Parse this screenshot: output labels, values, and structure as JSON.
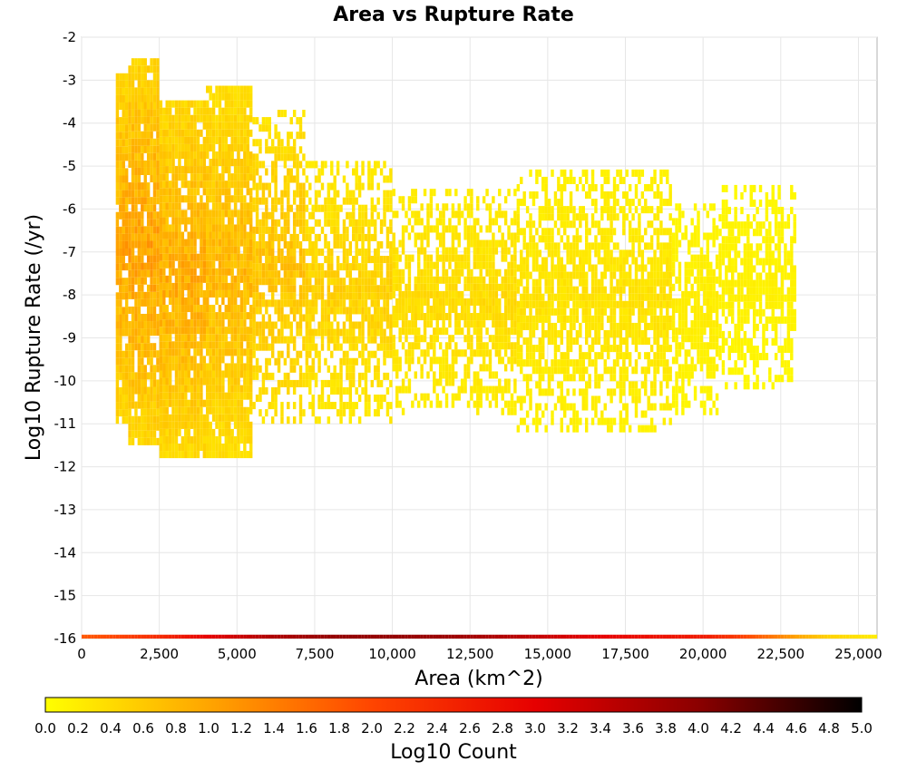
{
  "chart_data": {
    "type": "heatmap",
    "title": "Area vs Rupture Rate",
    "xlabel": "Area (km^2)",
    "ylabel": "Log10 Rupture Rate (/yr)",
    "xlim": [
      0,
      25600
    ],
    "ylim": [
      -16,
      -2
    ],
    "x_ticks": [
      "0",
      "2,500",
      "5,000",
      "7,500",
      "10,000",
      "12,500",
      "15,000",
      "17,500",
      "20,000",
      "22,500",
      "25,000"
    ],
    "y_ticks": [
      "-2",
      "-3",
      "-4",
      "-5",
      "-6",
      "-7",
      "-8",
      "-9",
      "-10",
      "-11",
      "-12",
      "-13",
      "-14",
      "-15",
      "-16"
    ],
    "grid": true,
    "colorbar": {
      "label": "Log10 Count",
      "range": [
        0,
        5
      ],
      "ticks": [
        "0.0",
        "0.2",
        "0.4",
        "0.6",
        "0.8",
        "1.0",
        "1.2",
        "1.4",
        "1.6",
        "1.8",
        "2.0",
        "2.2",
        "2.4",
        "2.6",
        "2.8",
        "3.0",
        "3.2",
        "3.4",
        "3.6",
        "3.8",
        "4.0",
        "4.2",
        "4.4",
        "4.6",
        "4.8",
        "5.0"
      ],
      "colors": [
        "#ffff00",
        "#ffa500",
        "#ff4500",
        "#e60000",
        "#8b0000",
        "#000000"
      ]
    },
    "bottom_row": {
      "y": -16,
      "bins": [
        [
          0,
          1.8
        ],
        [
          1000,
          2.0
        ],
        [
          2500,
          2.4
        ],
        [
          4000,
          3.0
        ],
        [
          6000,
          3.6
        ],
        [
          8000,
          3.9
        ],
        [
          10000,
          3.9
        ],
        [
          12000,
          3.8
        ],
        [
          14000,
          3.5
        ],
        [
          16000,
          3.1
        ],
        [
          18000,
          2.8
        ],
        [
          20000,
          2.6
        ],
        [
          21000,
          2.2
        ],
        [
          22000,
          1.6
        ],
        [
          23000,
          1.0
        ],
        [
          24000,
          0.5
        ],
        [
          25600,
          0.2
        ]
      ]
    },
    "density_profile": [
      {
        "x": [
          1100,
          1500
        ],
        "ymin": -11.0,
        "ymax": -3.0,
        "peak": 1.25
      },
      {
        "x": [
          1500,
          2500
        ],
        "ymin": -11.5,
        "ymax": -2.6,
        "peak": 1.3
      },
      {
        "x": [
          2500,
          4000
        ],
        "ymin": -11.8,
        "ymax": -3.5,
        "peak": 1.15
      },
      {
        "x": [
          4000,
          5500
        ],
        "ymin": -11.8,
        "ymax": -3.3,
        "peak": 1.0
      },
      {
        "x": [
          5500,
          7200
        ],
        "ymin": -11.0,
        "ymax": -3.8,
        "peak": 0.85
      },
      {
        "x": [
          7200,
          10000
        ],
        "ymin": -11.0,
        "ymax": -5.0,
        "peak": 0.65
      },
      {
        "x": [
          10000,
          14000
        ],
        "ymin": -10.8,
        "ymax": -5.6,
        "peak": 0.5
      },
      {
        "x": [
          14000,
          19000
        ],
        "ymin": -11.2,
        "ymax": -5.2,
        "peak": 0.4
      },
      {
        "x": [
          19000,
          20500
        ],
        "ymin": -10.8,
        "ymax": -6.0,
        "peak": 0.25
      },
      {
        "x": [
          20500,
          23000
        ],
        "ymin": -10.2,
        "ymax": -5.6,
        "peak": 0.2
      }
    ]
  }
}
